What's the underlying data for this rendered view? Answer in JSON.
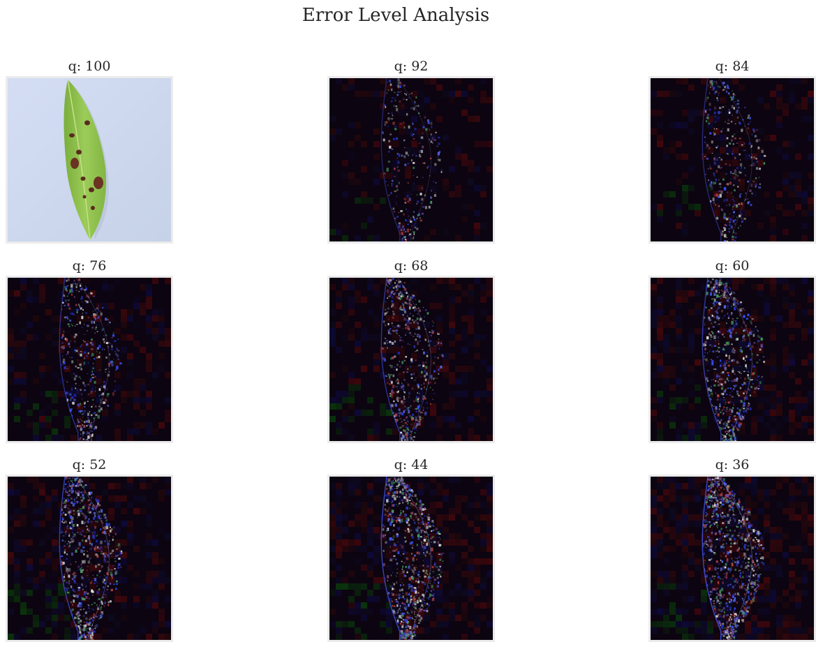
{
  "title": "Error Level Analysis",
  "panels": [
    {
      "label": "q: 100",
      "quality": 100,
      "kind": "original",
      "icon": "leaf-photo"
    },
    {
      "label": "q: 92",
      "quality": 92,
      "kind": "ela",
      "icon": "ela-map"
    },
    {
      "label": "q: 84",
      "quality": 84,
      "kind": "ela",
      "icon": "ela-map"
    },
    {
      "label": "q: 76",
      "quality": 76,
      "kind": "ela",
      "icon": "ela-map"
    },
    {
      "label": "q: 68",
      "quality": 68,
      "kind": "ela",
      "icon": "ela-map"
    },
    {
      "label": "q: 60",
      "quality": 60,
      "kind": "ela",
      "icon": "ela-map"
    },
    {
      "label": "q: 52",
      "quality": 52,
      "kind": "ela",
      "icon": "ela-map"
    },
    {
      "label": "q: 44",
      "quality": 44,
      "kind": "ela",
      "icon": "ela-map"
    },
    {
      "label": "q: 36",
      "quality": 36,
      "kind": "ela",
      "icon": "ela-map"
    }
  ],
  "colors": {
    "original_background": "#cfdcf2",
    "leaf_green": "#8cc04a",
    "ela_background": "#0c0410",
    "frame_border": "#ebebeb"
  }
}
